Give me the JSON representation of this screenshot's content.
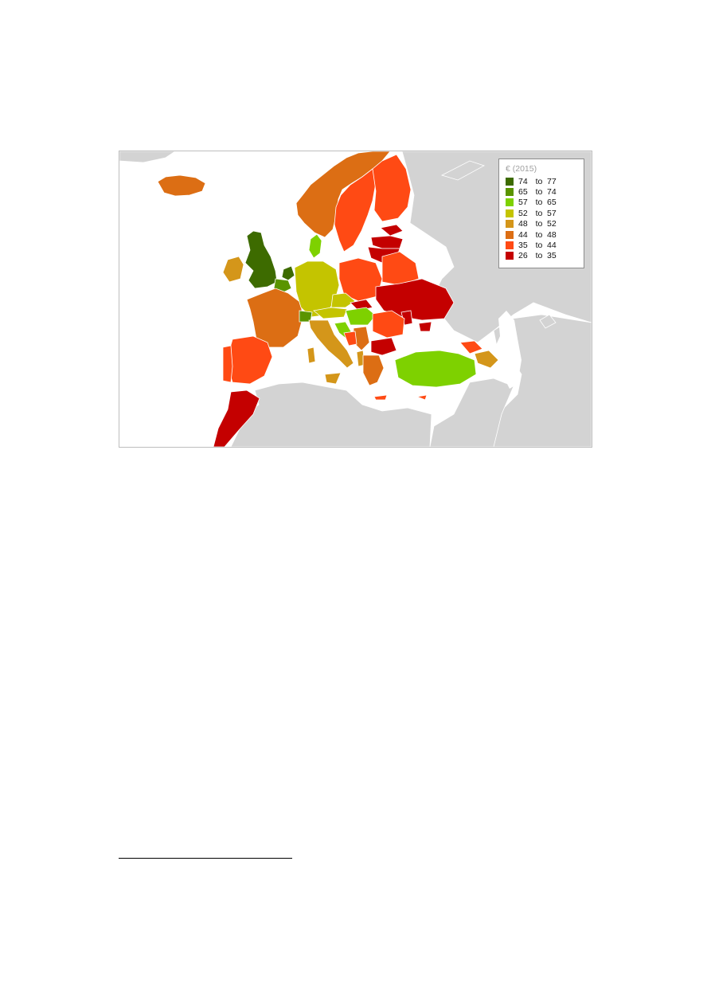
{
  "legend": {
    "title": "€ (2015)",
    "bins": [
      {
        "low": "74",
        "sep": "to",
        "high": "77",
        "color": "#3d6b00"
      },
      {
        "low": "65",
        "sep": "to",
        "high": "74",
        "color": "#5a9400"
      },
      {
        "low": "57",
        "sep": "to",
        "high": "65",
        "color": "#7ed100"
      },
      {
        "low": "52",
        "sep": "to",
        "high": "57",
        "color": "#c4c400"
      },
      {
        "low": "48",
        "sep": "to",
        "high": "52",
        "color": "#d4961a"
      },
      {
        "low": "44",
        "sep": "to",
        "high": "48",
        "color": "#dc6e14"
      },
      {
        "low": "35",
        "sep": "to",
        "high": "44",
        "color": "#ff4a14"
      },
      {
        "low": "26",
        "sep": "to",
        "high": "35",
        "color": "#c40000"
      }
    ]
  },
  "colors": {
    "no_data": "#d3d3d3",
    "water": "#ffffff",
    "border": "#ffffff"
  }
}
